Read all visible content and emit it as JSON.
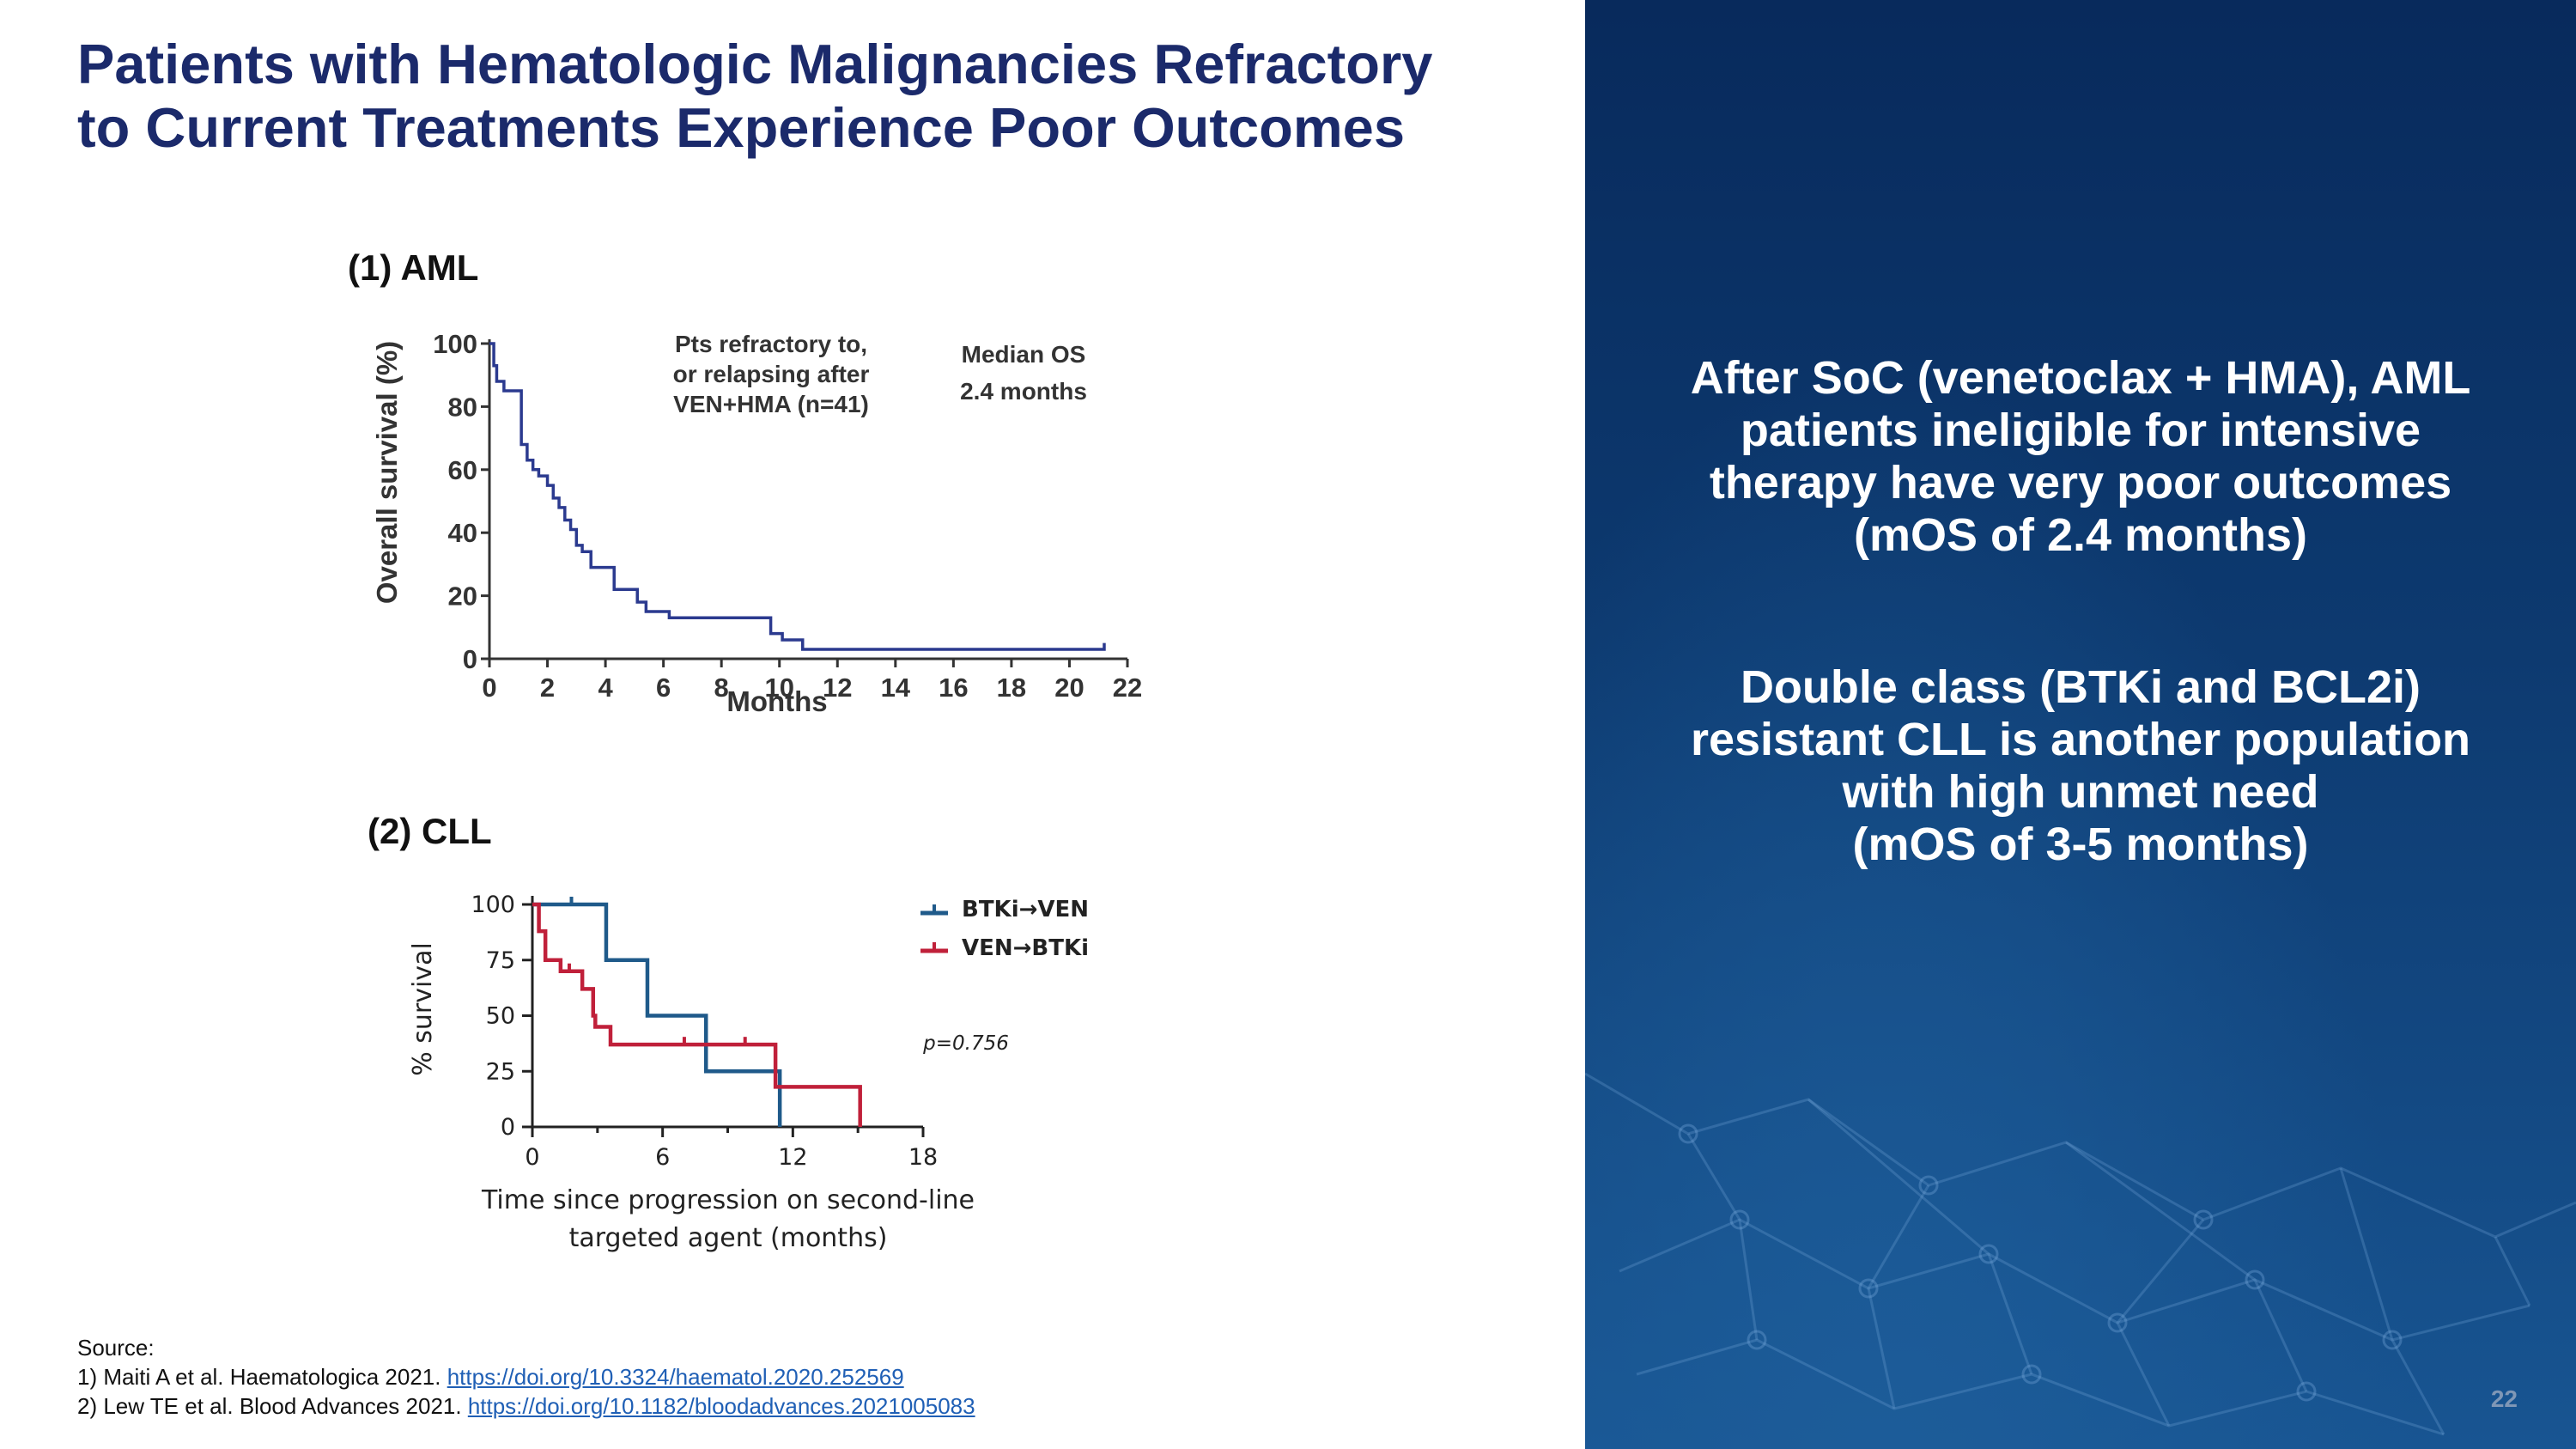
{
  "slide": {
    "title_line1": "Patients with Hematologic Malignancies Refractory",
    "title_line2": "to Current Treatments Experience Poor Outcomes",
    "page_number": "22"
  },
  "panels": {
    "aml_label": "(1)   AML",
    "cll_label": "(2)  CLL"
  },
  "right_panel": {
    "block1": [
      "After SoC (venetoclax + HMA), AML",
      "patients ineligible for intensive",
      "therapy have very poor outcomes",
      "(mOS of 2.4 months)"
    ],
    "block2": [
      "Double class (BTKi and BCL2i)",
      "resistant CLL is another population",
      "with high unmet need",
      "(mOS of 3-5 months)"
    ]
  },
  "source": {
    "heading": "Source:",
    "ref1_text": "1) Maiti A et al. Haematologica 2021. ",
    "ref1_link": "https://doi.org/10.3324/haematol.2020.252569",
    "ref2_text": "2) Lew TE et al. Blood Advances 2021. ",
    "ref2_link": "https://doi.org/10.1182/bloodadvances.2021005083"
  },
  "colors": {
    "title": "#1b2a6b",
    "aml_line": "#2b3a8f",
    "cll_btki_ven": "#1f5a8a",
    "cll_ven_btki": "#c0203a"
  },
  "chart_data": [
    {
      "type": "line",
      "step": true,
      "title": "",
      "xlabel": "Months",
      "ylabel": "Overall survival (%)",
      "xlim": [
        0,
        22
      ],
      "ylim": [
        0,
        100
      ],
      "xticks": [
        0,
        2,
        4,
        6,
        8,
        10,
        12,
        14,
        16,
        18,
        20,
        22
      ],
      "yticks": [
        0,
        20,
        40,
        60,
        80,
        100
      ],
      "annotation_lines": [
        "Pts refractory to,",
        "or relapsing after",
        "VEN+HMA (n=41)"
      ],
      "median_label": "Median  OS",
      "median_value": "2.4 months",
      "series": [
        {
          "name": "VEN+HMA refractory",
          "x": [
            0,
            0.15,
            0.25,
            0.5,
            1.1,
            1.3,
            1.5,
            1.7,
            2.0,
            2.2,
            2.4,
            2.6,
            2.8,
            3.0,
            3.2,
            3.5,
            4.3,
            5.1,
            5.4,
            6.2,
            9.7,
            10.1,
            10.8,
            21.2
          ],
          "y": [
            100,
            93,
            88,
            85,
            68,
            63,
            60,
            58,
            55,
            51,
            48,
            44,
            41,
            36,
            34,
            29,
            22,
            18,
            15,
            13,
            8,
            6,
            3,
            5
          ]
        }
      ]
    },
    {
      "type": "line",
      "step": true,
      "title": "",
      "xlabel": "Time since progression on second-line targeted agent (months)",
      "xlabel_line1": "Time since progression on second-line",
      "xlabel_line2": "targeted agent (months)",
      "ylabel": "% survival",
      "xlim": [
        0,
        18
      ],
      "ylim": [
        0,
        100
      ],
      "xticks": [
        0,
        6,
        12,
        18
      ],
      "yticks": [
        0,
        25,
        50,
        75,
        100
      ],
      "p_value_label": "p=0.756",
      "series": [
        {
          "name": "BTKi→VEN",
          "x": [
            0,
            3.4,
            5.3,
            8.0,
            11.4,
            11.4
          ],
          "y": [
            100,
            75,
            50,
            25,
            0,
            0
          ],
          "censor_x": [
            1.8
          ]
        },
        {
          "name": "VEN→BTKi",
          "x": [
            0,
            0.3,
            0.6,
            1.3,
            2.3,
            2.8,
            2.9,
            3.6,
            11.2,
            15.1
          ],
          "y": [
            100,
            88,
            75,
            70,
            62,
            50,
            45,
            37,
            18,
            0
          ],
          "censor_x": [
            1.7,
            7.0,
            9.8
          ]
        }
      ]
    }
  ]
}
